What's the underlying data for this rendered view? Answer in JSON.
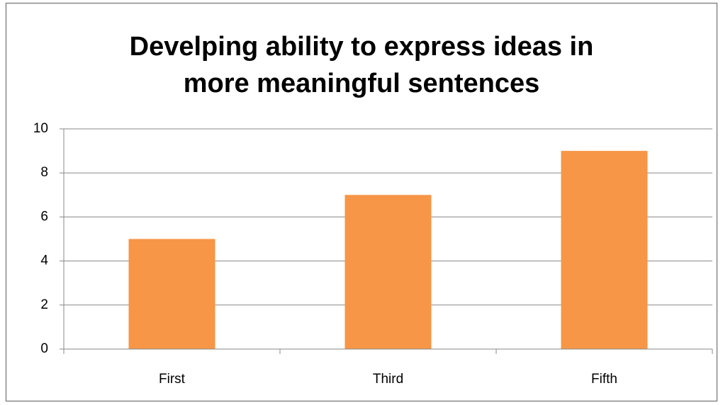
{
  "chart_data": {
    "type": "bar",
    "title": "Develping ability to express ideas in more meaningful sentences",
    "categories": [
      "First",
      "Third",
      "Fifth"
    ],
    "values": [
      5,
      7,
      9
    ],
    "color": "#f79646",
    "ylim": [
      0,
      10
    ],
    "yticks": [
      0,
      2,
      4,
      6,
      8,
      10
    ],
    "grid": true
  }
}
